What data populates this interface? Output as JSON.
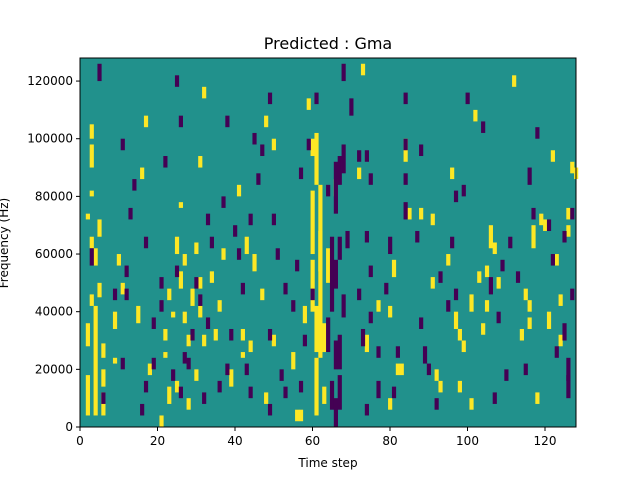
{
  "chart_data": {
    "type": "heatmap",
    "title": "Predicted : Gma",
    "xlabel": "Time step",
    "ylabel": "Frequency (Hz)",
    "xlim": [
      0,
      128
    ],
    "ylim": [
      0,
      128000
    ],
    "x_ticks": [
      0,
      20,
      40,
      60,
      80,
      100,
      120
    ],
    "y_ticks": [
      0,
      20000,
      40000,
      60000,
      80000,
      100000,
      120000
    ],
    "n_time_steps": 128,
    "n_freq_bins": 64,
    "freq_bin_hz": 2000,
    "colors": {
      "background": "#21918c",
      "high": "#fde725",
      "low": "#440154"
    },
    "high_cells": [
      [
        2,
        4,
        16
      ],
      [
        2,
        28,
        34
      ],
      [
        4,
        4,
        40
      ],
      [
        3,
        42,
        44
      ],
      [
        5,
        45,
        48
      ],
      [
        4,
        56,
        60
      ],
      [
        3,
        62,
        64
      ],
      [
        5,
        66,
        70
      ],
      [
        2,
        72,
        72
      ],
      [
        3,
        80,
        80
      ],
      [
        3,
        90,
        96
      ],
      [
        3,
        100,
        103
      ],
      [
        6,
        4,
        10
      ],
      [
        6,
        14,
        18
      ],
      [
        6,
        24,
        27
      ],
      [
        9,
        22,
        22
      ],
      [
        9,
        34,
        38
      ],
      [
        10,
        56,
        58
      ],
      [
        11,
        46,
        48
      ],
      [
        15,
        36,
        40
      ],
      [
        16,
        86,
        88
      ],
      [
        17,
        104,
        106
      ],
      [
        18,
        18,
        20
      ],
      [
        21,
        0,
        2
      ],
      [
        22,
        30,
        32
      ],
      [
        22,
        24,
        24
      ],
      [
        23,
        44,
        46
      ],
      [
        23,
        8,
        12
      ],
      [
        24,
        38,
        38
      ],
      [
        25,
        12,
        14
      ],
      [
        25,
        60,
        64
      ],
      [
        26,
        48,
        52
      ],
      [
        26,
        76,
        76
      ],
      [
        27,
        36,
        38
      ],
      [
        27,
        56,
        58
      ],
      [
        28,
        28,
        30
      ],
      [
        28,
        6,
        8
      ],
      [
        29,
        42,
        46
      ],
      [
        30,
        16,
        18
      ],
      [
        30,
        60,
        62
      ],
      [
        31,
        48,
        50
      ],
      [
        31,
        90,
        92
      ],
      [
        31,
        38,
        40
      ],
      [
        32,
        28,
        30
      ],
      [
        32,
        114,
        116
      ],
      [
        34,
        50,
        52
      ],
      [
        35,
        30,
        32
      ],
      [
        36,
        40,
        42
      ],
      [
        37,
        58,
        60
      ],
      [
        39,
        14,
        18
      ],
      [
        41,
        80,
        82
      ],
      [
        42,
        30,
        32
      ],
      [
        42,
        24,
        24
      ],
      [
        43,
        60,
        64
      ],
      [
        44,
        26,
        28
      ],
      [
        45,
        54,
        58
      ],
      [
        47,
        44,
        46
      ],
      [
        48,
        104,
        106
      ],
      [
        48,
        8,
        10
      ],
      [
        50,
        28,
        30
      ],
      [
        50,
        96,
        98
      ],
      [
        55,
        20,
        24
      ],
      [
        56,
        2,
        4
      ],
      [
        57,
        2,
        4
      ],
      [
        58,
        36,
        40
      ],
      [
        59,
        110,
        112
      ],
      [
        60,
        94,
        98
      ],
      [
        60,
        60,
        80
      ],
      [
        60,
        40,
        56
      ],
      [
        61,
        84,
        100
      ],
      [
        61,
        26,
        40
      ],
      [
        61,
        4,
        22
      ],
      [
        62,
        24,
        82
      ],
      [
        62,
        54,
        66
      ],
      [
        63,
        8,
        12
      ],
      [
        63,
        26,
        34
      ],
      [
        64,
        50,
        60
      ],
      [
        66,
        80,
        84
      ],
      [
        72,
        86,
        88
      ],
      [
        73,
        122,
        124
      ],
      [
        74,
        26,
        30
      ],
      [
        77,
        40,
        42
      ],
      [
        80,
        6,
        8
      ],
      [
        80,
        38,
        40
      ],
      [
        81,
        52,
        56
      ],
      [
        82,
        18,
        20
      ],
      [
        83,
        18,
        20
      ],
      [
        84,
        92,
        98
      ],
      [
        85,
        72,
        74
      ],
      [
        88,
        72,
        74
      ],
      [
        91,
        48,
        50
      ],
      [
        91,
        70,
        72
      ],
      [
        92,
        16,
        18
      ],
      [
        93,
        12,
        14
      ],
      [
        95,
        56,
        58
      ],
      [
        96,
        86,
        88
      ],
      [
        97,
        34,
        38
      ],
      [
        98,
        30,
        32
      ],
      [
        98,
        12,
        14
      ],
      [
        99,
        26,
        28
      ],
      [
        101,
        40,
        44
      ],
      [
        101,
        6,
        8
      ],
      [
        102,
        106,
        108
      ],
      [
        103,
        50,
        52
      ],
      [
        104,
        32,
        34
      ],
      [
        105,
        40,
        42
      ],
      [
        105,
        52,
        54
      ],
      [
        106,
        62,
        68
      ],
      [
        107,
        60,
        62
      ],
      [
        108,
        48,
        50
      ],
      [
        112,
        118,
        120
      ],
      [
        114,
        30,
        32
      ],
      [
        115,
        44,
        46
      ],
      [
        116,
        40,
        42
      ],
      [
        116,
        34,
        36
      ],
      [
        117,
        62,
        68
      ],
      [
        118,
        8,
        10
      ],
      [
        119,
        70,
        72
      ],
      [
        120,
        68,
        70
      ],
      [
        121,
        34,
        38
      ],
      [
        122,
        92,
        94
      ],
      [
        123,
        56,
        58
      ],
      [
        124,
        42,
        44
      ],
      [
        124,
        28,
        30
      ],
      [
        126,
        66,
        68
      ],
      [
        126,
        72,
        74
      ],
      [
        127,
        88,
        90
      ],
      [
        128,
        86,
        88
      ]
    ],
    "low_cells": [
      [
        3,
        56,
        60
      ],
      [
        5,
        120,
        124
      ],
      [
        6,
        8,
        10
      ],
      [
        9,
        44,
        46
      ],
      [
        11,
        96,
        98
      ],
      [
        11,
        20,
        22
      ],
      [
        12,
        44,
        46
      ],
      [
        12,
        52,
        54
      ],
      [
        13,
        72,
        74
      ],
      [
        14,
        82,
        84
      ],
      [
        16,
        4,
        6
      ],
      [
        17,
        62,
        64
      ],
      [
        17,
        12,
        14
      ],
      [
        19,
        20,
        22
      ],
      [
        19,
        34,
        36
      ],
      [
        21,
        40,
        42
      ],
      [
        21,
        48,
        50
      ],
      [
        22,
        90,
        92
      ],
      [
        24,
        16,
        18
      ],
      [
        25,
        52,
        54
      ],
      [
        25,
        118,
        120
      ],
      [
        26,
        104,
        106
      ],
      [
        26,
        10,
        12
      ],
      [
        27,
        22,
        24
      ],
      [
        28,
        20,
        22
      ],
      [
        29,
        30,
        32
      ],
      [
        30,
        48,
        50
      ],
      [
        31,
        42,
        44
      ],
      [
        32,
        8,
        10
      ],
      [
        33,
        34,
        36
      ],
      [
        33,
        70,
        72
      ],
      [
        34,
        62,
        64
      ],
      [
        36,
        12,
        14
      ],
      [
        37,
        76,
        78
      ],
      [
        38,
        104,
        106
      ],
      [
        38,
        18,
        20
      ],
      [
        39,
        30,
        32
      ],
      [
        40,
        66,
        68
      ],
      [
        41,
        58,
        60
      ],
      [
        42,
        46,
        48
      ],
      [
        43,
        18,
        20
      ],
      [
        44,
        10,
        12
      ],
      [
        44,
        70,
        72
      ],
      [
        45,
        98,
        100
      ],
      [
        46,
        84,
        86
      ],
      [
        47,
        94,
        96
      ],
      [
        49,
        4,
        6
      ],
      [
        49,
        30,
        32
      ],
      [
        49,
        112,
        114
      ],
      [
        50,
        70,
        72
      ],
      [
        51,
        58,
        60
      ],
      [
        52,
        16,
        18
      ],
      [
        53,
        10,
        12
      ],
      [
        53,
        46,
        48
      ],
      [
        55,
        40,
        42
      ],
      [
        56,
        54,
        56
      ],
      [
        57,
        12,
        14
      ],
      [
        57,
        86,
        88
      ],
      [
        58,
        28,
        30
      ],
      [
        59,
        96,
        98
      ],
      [
        60,
        44,
        46
      ],
      [
        61,
        112,
        114
      ],
      [
        64,
        26,
        36
      ],
      [
        64,
        80,
        82
      ],
      [
        65,
        40,
        64
      ],
      [
        65,
        6,
        14
      ],
      [
        66,
        74,
        90
      ],
      [
        66,
        48,
        56
      ],
      [
        66,
        20,
        28
      ],
      [
        66,
        0,
        8
      ],
      [
        67,
        84,
        92
      ],
      [
        67,
        58,
        64
      ],
      [
        67,
        20,
        30
      ],
      [
        67,
        6,
        16
      ],
      [
        68,
        38,
        44
      ],
      [
        68,
        88,
        96
      ],
      [
        68,
        120,
        124
      ],
      [
        69,
        62,
        66
      ],
      [
        70,
        108,
        112
      ],
      [
        72,
        92,
        94
      ],
      [
        72,
        44,
        46
      ],
      [
        73,
        28,
        32
      ],
      [
        74,
        4,
        6
      ],
      [
        74,
        64,
        66
      ],
      [
        74,
        92,
        94
      ],
      [
        75,
        84,
        86
      ],
      [
        75,
        52,
        54
      ],
      [
        75,
        36,
        38
      ],
      [
        77,
        10,
        14
      ],
      [
        77,
        24,
        26
      ],
      [
        79,
        46,
        48
      ],
      [
        80,
        60,
        64
      ],
      [
        81,
        10,
        12
      ],
      [
        82,
        24,
        26
      ],
      [
        84,
        84,
        86
      ],
      [
        84,
        72,
        76
      ],
      [
        84,
        96,
        98
      ],
      [
        84,
        112,
        114
      ],
      [
        87,
        64,
        66
      ],
      [
        88,
        94,
        96
      ],
      [
        88,
        34,
        36
      ],
      [
        89,
        22,
        26
      ],
      [
        90,
        18,
        20
      ],
      [
        92,
        6,
        8
      ],
      [
        93,
        50,
        52
      ],
      [
        95,
        40,
        42
      ],
      [
        96,
        62,
        64
      ],
      [
        97,
        44,
        46
      ],
      [
        97,
        78,
        80
      ],
      [
        99,
        80,
        82
      ],
      [
        100,
        112,
        114
      ],
      [
        104,
        102,
        104
      ],
      [
        106,
        46,
        50
      ],
      [
        107,
        8,
        10
      ],
      [
        108,
        36,
        38
      ],
      [
        109,
        54,
        56
      ],
      [
        110,
        16,
        18
      ],
      [
        111,
        62,
        64
      ],
      [
        113,
        50,
        52
      ],
      [
        115,
        18,
        20
      ],
      [
        116,
        84,
        88
      ],
      [
        117,
        72,
        74
      ],
      [
        118,
        100,
        102
      ],
      [
        121,
        68,
        70
      ],
      [
        122,
        56,
        58
      ],
      [
        123,
        24,
        26
      ],
      [
        125,
        64,
        66
      ],
      [
        125,
        30,
        34
      ],
      [
        126,
        10,
        16
      ],
      [
        126,
        16,
        22
      ],
      [
        127,
        44,
        46
      ],
      [
        127,
        72,
        74
      ]
    ]
  }
}
